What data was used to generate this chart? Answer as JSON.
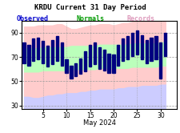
{
  "title": "KRDU Current 31 Day Period",
  "legend_labels": [
    "Observed",
    "Normals",
    "Records"
  ],
  "legend_text_colors": [
    "#0000cc",
    "#009900",
    "#dd99bb"
  ],
  "xlabel": "May 2024",
  "xticks": [
    5,
    10,
    15,
    20,
    25,
    30
  ],
  "yticks": [
    30,
    50,
    70,
    90
  ],
  "ylim": [
    27,
    100
  ],
  "xlim": [
    0.5,
    33.5
  ],
  "days": [
    1,
    2,
    3,
    4,
    5,
    6,
    7,
    8,
    9,
    10,
    11,
    12,
    13,
    14,
    15,
    16,
    17,
    18,
    19,
    20,
    21,
    22,
    23,
    24,
    25,
    26,
    27,
    28,
    29,
    30,
    31
  ],
  "obs_high": [
    82,
    80,
    85,
    86,
    83,
    79,
    84,
    87,
    82,
    68,
    63,
    65,
    69,
    75,
    80,
    82,
    78,
    76,
    73,
    72,
    80,
    85,
    87,
    90,
    92,
    88,
    84,
    86,
    87,
    82,
    90
  ],
  "obs_low": [
    65,
    63,
    67,
    68,
    65,
    62,
    64,
    67,
    63,
    57,
    52,
    54,
    56,
    58,
    62,
    64,
    60,
    59,
    57,
    57,
    63,
    67,
    68,
    71,
    72,
    68,
    65,
    67,
    68,
    52,
    71
  ],
  "norm_high": [
    78,
    78,
    78,
    78,
    79,
    79,
    79,
    79,
    79,
    79,
    80,
    80,
    80,
    80,
    80,
    80,
    81,
    81,
    81,
    81,
    81,
    81,
    81,
    82,
    82,
    82,
    82,
    82,
    82,
    83,
    83
  ],
  "norm_low": [
    57,
    57,
    57,
    57,
    58,
    58,
    58,
    58,
    58,
    58,
    59,
    59,
    59,
    59,
    59,
    59,
    60,
    60,
    60,
    60,
    60,
    60,
    60,
    61,
    61,
    61,
    61,
    61,
    61,
    62,
    62
  ],
  "rec_high": [
    95,
    95,
    95,
    96,
    96,
    96,
    96,
    97,
    97,
    95,
    93,
    93,
    94,
    95,
    96,
    96,
    97,
    97,
    97,
    96,
    97,
    98,
    98,
    99,
    99,
    99,
    99,
    99,
    99,
    99,
    99
  ],
  "rec_low": [
    38,
    38,
    37,
    37,
    38,
    39,
    39,
    40,
    40,
    41,
    41,
    41,
    42,
    42,
    43,
    43,
    44,
    44,
    44,
    44,
    45,
    45,
    46,
    46,
    46,
    47,
    47,
    47,
    47,
    48,
    48
  ],
  "bar_color": "#000080",
  "norm_fill_color": "#bbffbb",
  "rec_high_fill_color": "#ffcccc",
  "bg_fill_color": "#ccccff",
  "grid_color": "#999999",
  "bar_width": 0.55
}
